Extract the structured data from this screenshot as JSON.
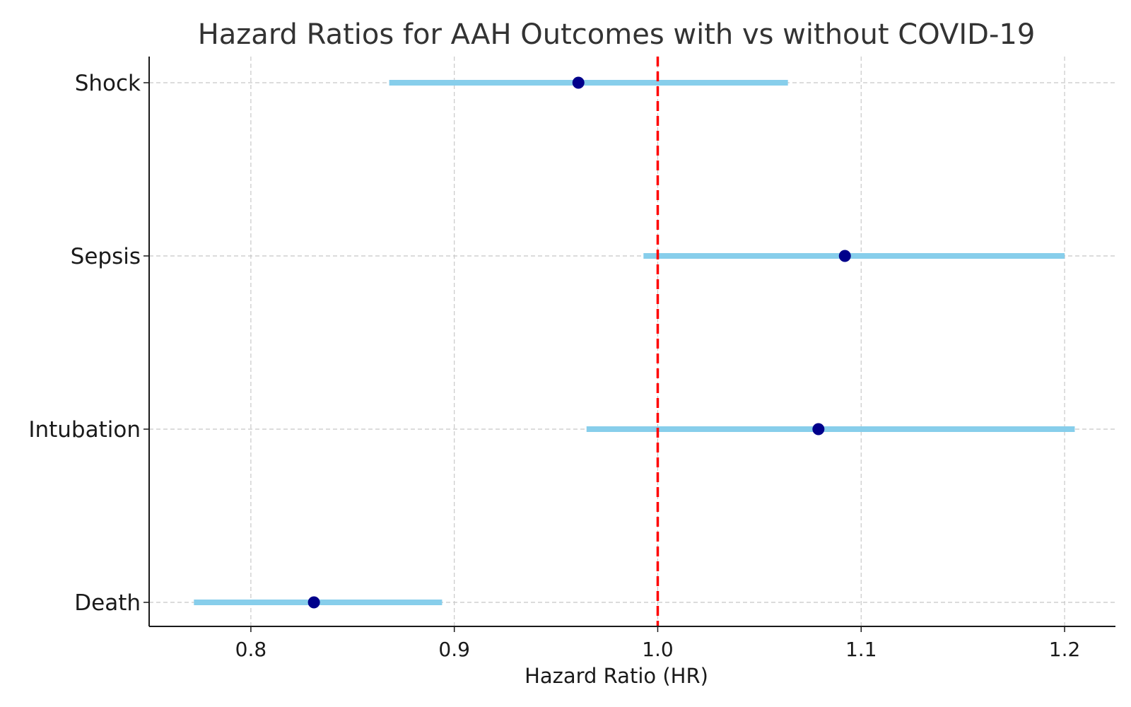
{
  "chart_data": {
    "type": "scatter",
    "subtype": "forest-plot",
    "title": "Hazard Ratios for AAH Outcomes with vs without COVID-19",
    "xlabel": "Hazard Ratio (HR)",
    "ylabel": "",
    "xlim": [
      0.75,
      1.225
    ],
    "xticks": [
      0.8,
      0.9,
      1.0,
      1.1,
      1.2
    ],
    "xtick_labels": [
      "0.8",
      "0.9",
      "1.0",
      "1.1",
      "1.2"
    ],
    "categories": [
      "Shock",
      "Sepsis",
      "Intubation",
      "Death"
    ],
    "series": [
      {
        "hr": [
          0.961,
          1.092,
          1.079,
          0.831
        ],
        "ci_lower": [
          0.868,
          0.993,
          0.965,
          0.772
        ],
        "ci_upper": [
          1.064,
          1.2,
          1.205,
          0.894
        ]
      }
    ],
    "reference_line": 1.0,
    "grid": true,
    "colors": {
      "point": "#00008b",
      "interval": "#87ceeb",
      "reference": "#ff0000",
      "grid": "#c8c8c8",
      "axis": "#1a1a1a",
      "title": "#333333"
    }
  }
}
